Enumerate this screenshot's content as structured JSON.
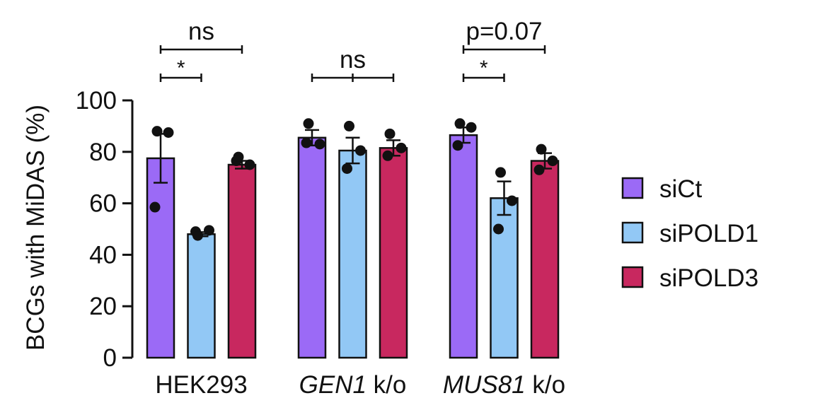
{
  "chart_data": {
    "type": "bar",
    "title": "",
    "xlabel": "",
    "ylabel": "BCGs with MiDAS (%)",
    "ylim": [
      0,
      100
    ],
    "yticks": [
      0,
      20,
      40,
      60,
      80,
      100
    ],
    "grid": false,
    "legend_position": "right",
    "categories": [
      {
        "name": "HEK293",
        "italic_part": "",
        "plain_part": "HEK293"
      },
      {
        "name": "GEN1 k/o",
        "italic_part": "GEN1",
        "plain_part": " k/o"
      },
      {
        "name": "MUS81 k/o",
        "italic_part": "MUS81",
        "plain_part": " k/o"
      }
    ],
    "series": [
      {
        "name": "siCt",
        "color": "#9b6af6",
        "values": [
          77.5,
          85.5,
          86.5
        ],
        "errors": [
          9.5,
          3,
          3
        ],
        "points": [
          [
            88,
            87.5,
            58.5
          ],
          [
            91,
            83,
            83.5
          ],
          [
            91,
            89.5,
            82.5
          ]
        ]
      },
      {
        "name": "siPOLD1",
        "color": "#92c8f5",
        "values": [
          48,
          80.5,
          62
        ],
        "errors": [
          0.8,
          5,
          6.5
        ],
        "points": [
          [
            47.5,
            49.5,
            49
          ],
          [
            90,
            80.5,
            73.5
          ],
          [
            72,
            61,
            50
          ]
        ]
      },
      {
        "name": "siPOLD3",
        "color": "#c8285f",
        "values": [
          75,
          81.5,
          76.5
        ],
        "errors": [
          1.5,
          3,
          3
        ],
        "points": [
          [
            78,
            75,
            76.5
          ],
          [
            87,
            81.5,
            78.5
          ],
          [
            81,
            76.5,
            73
          ]
        ]
      }
    ],
    "annotations": [
      {
        "text": "ns",
        "group": 0,
        "from_series": 0,
        "to_series": 2,
        "level": "upper"
      },
      {
        "text": "*",
        "group": 0,
        "from_series": 0,
        "to_series": 1,
        "level": "lower"
      },
      {
        "text": "ns",
        "group": 1,
        "from_series": 0,
        "to_series": 2,
        "level": "lower"
      },
      {
        "text": "p=0.07",
        "group": 2,
        "from_series": 0,
        "to_series": 2,
        "level": "upper"
      },
      {
        "text": "*",
        "group": 2,
        "from_series": 0,
        "to_series": 1,
        "level": "lower"
      }
    ]
  }
}
